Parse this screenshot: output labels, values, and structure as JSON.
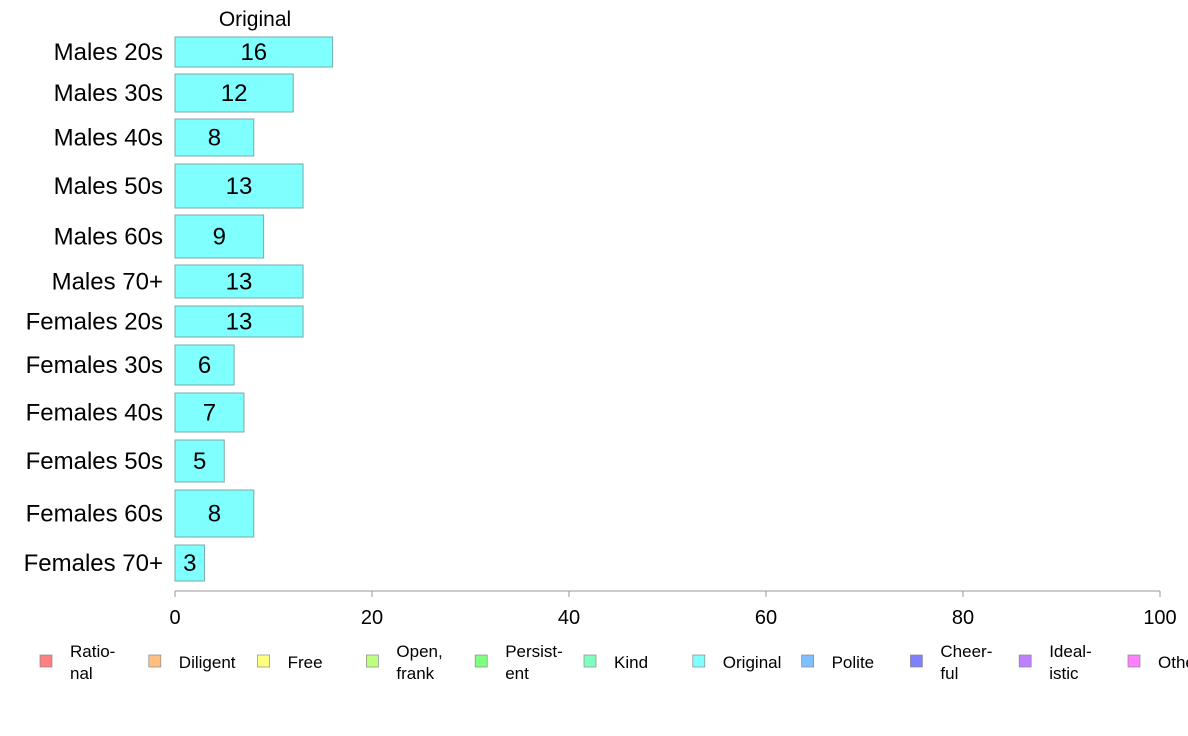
{
  "chart_data": {
    "type": "bar",
    "orientation": "horizontal",
    "series_title": "Original",
    "categories": [
      "Males 20s",
      "Males 30s",
      "Males 40s",
      "Males 50s",
      "Males 60s",
      "Males 70+",
      "Females 20s",
      "Females 30s",
      "Females 40s",
      "Females 50s",
      "Females 60s",
      "Females 70+"
    ],
    "series": [
      {
        "name": "Original",
        "color": "#80FFFF",
        "values": [
          16,
          12,
          8,
          13,
          9,
          13,
          13,
          6,
          7,
          5,
          8,
          3
        ]
      }
    ],
    "xlim": [
      0,
      100
    ],
    "xticks": [
      0,
      20,
      40,
      60,
      80,
      100
    ],
    "grid": false,
    "legend_position": "bottom",
    "legend": [
      {
        "label": "Ratio-\nnal",
        "color": "#FF8080"
      },
      {
        "label": "Diligent",
        "color": "#FFBF80"
      },
      {
        "label": "Free",
        "color": "#FFFF80"
      },
      {
        "label": "Open,\nfrank",
        "color": "#BFFF80"
      },
      {
        "label": "Persist-\nent",
        "color": "#80FF80"
      },
      {
        "label": "Kind",
        "color": "#80FFBF"
      },
      {
        "label": "Original",
        "color": "#80FFFF"
      },
      {
        "label": "Polite",
        "color": "#80BFFF"
      },
      {
        "label": "Cheer-\nful",
        "color": "#8080FF"
      },
      {
        "label": "Ideal-\nistic",
        "color": "#BF80FF"
      },
      {
        "label": "Other",
        "color": "#FF80FF"
      }
    ]
  }
}
